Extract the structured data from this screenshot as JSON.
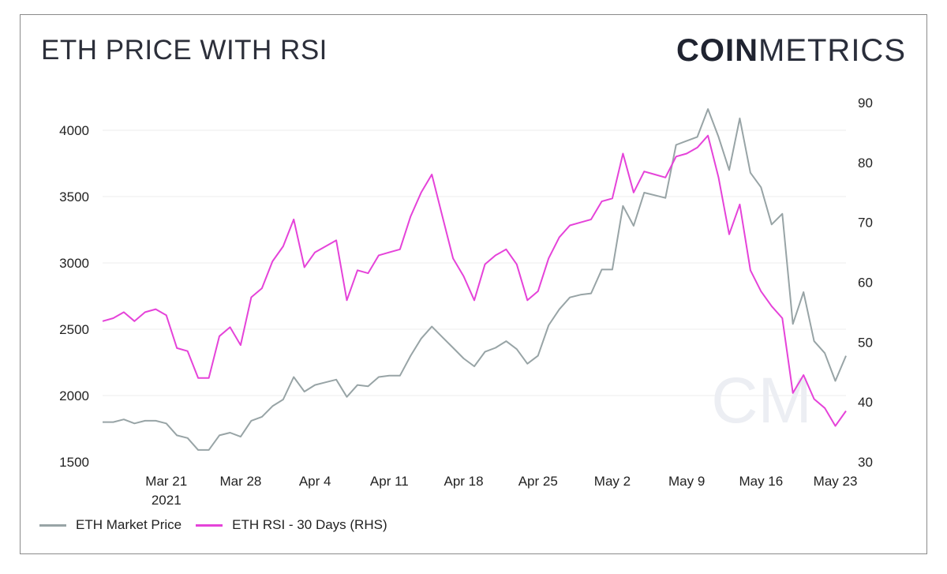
{
  "header": {
    "title": "ETH PRICE WITH RSI",
    "logo_bold": "COIN",
    "logo_light": "METRICS"
  },
  "watermark": "CM",
  "colors": {
    "price": "#98a4a6",
    "rsi": "#e543d9",
    "grid": "#eeeeee",
    "watermark": "#eceef3"
  },
  "legend": {
    "price_label": "ETH Market Price",
    "rsi_label": "ETH RSI - 30 Days (RHS)"
  },
  "chart_data": {
    "type": "line",
    "title": "ETH PRICE WITH RSI",
    "x_start": "2021-03-15",
    "x_end": "2021-05-23",
    "x_tick_labels": [
      {
        "day": 6,
        "label": "Mar 21",
        "sublabel": "2021"
      },
      {
        "day": 13,
        "label": "Mar 28"
      },
      {
        "day": 20,
        "label": "Apr 4"
      },
      {
        "day": 27,
        "label": "Apr 11"
      },
      {
        "day": 34,
        "label": "Apr 18"
      },
      {
        "day": 41,
        "label": "Apr 25"
      },
      {
        "day": 48,
        "label": "May 2"
      },
      {
        "day": 55,
        "label": "May 9"
      },
      {
        "day": 62,
        "label": "May 16"
      },
      {
        "day": 69,
        "label": "May 23"
      }
    ],
    "y_left": {
      "label": "",
      "lim": [
        1500,
        4250
      ],
      "ticks": [
        1500,
        2000,
        2500,
        3000,
        3500,
        4000
      ]
    },
    "y_right": {
      "label": "",
      "lim": [
        30,
        92
      ],
      "ticks": [
        30,
        40,
        50,
        60,
        70,
        80,
        90
      ]
    },
    "grid": true,
    "series": [
      {
        "name": "ETH Market Price",
        "axis": "left",
        "values": [
          1800,
          1800,
          1820,
          1790,
          1810,
          1810,
          1790,
          1700,
          1680,
          1590,
          1590,
          1700,
          1720,
          1690,
          1810,
          1840,
          1920,
          1970,
          2140,
          2030,
          2080,
          2100,
          2120,
          1990,
          2080,
          2070,
          2140,
          2150,
          2150,
          2300,
          2430,
          2520,
          2440,
          2360,
          2280,
          2220,
          2330,
          2360,
          2410,
          2350,
          2240,
          2300,
          2530,
          2650,
          2740,
          2760,
          2770,
          2950,
          2950,
          3430,
          3280,
          3530,
          3510,
          3490,
          3890,
          3920,
          3950,
          4160,
          3950,
          3700,
          4090,
          3680,
          3570,
          3290,
          3370,
          2540,
          2780,
          2410,
          2320,
          2110,
          2300
        ]
      },
      {
        "name": "ETH RSI - 30 Days (RHS)",
        "axis": "right",
        "values": [
          53.5,
          54,
          55,
          53.5,
          55,
          55.5,
          54.5,
          49,
          48.5,
          44,
          44,
          51,
          52.5,
          49.5,
          57.5,
          59,
          63.5,
          66,
          70.5,
          62.5,
          65,
          66,
          67,
          57,
          62,
          61.5,
          64.5,
          65,
          65.5,
          71,
          75,
          78,
          71,
          64,
          61,
          57,
          63,
          64.5,
          65.5,
          63,
          57,
          58.5,
          64,
          67.5,
          69.5,
          70,
          70.5,
          73.5,
          74,
          81.5,
          75,
          78.5,
          78,
          77.5,
          81,
          81.5,
          82.5,
          84.5,
          77.5,
          68,
          73,
          62,
          58.5,
          56,
          54,
          41.5,
          44.5,
          40.5,
          39,
          36,
          38.5
        ]
      }
    ]
  }
}
